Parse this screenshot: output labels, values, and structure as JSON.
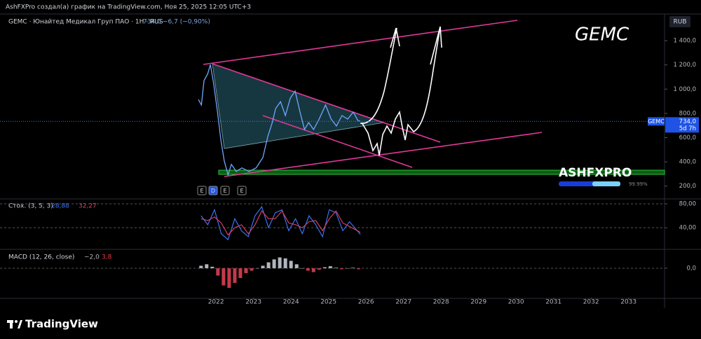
{
  "header": "AshFXPro создал(а) график на TradingView.com, Ноя 25, 2025 12:05 UTC+3",
  "footer": "TradingView",
  "chart_data": [
    {
      "type": "line",
      "title": "GEMC",
      "legend": {
        "symbol": "GEMC · Юнайтед Медикал Груп ПАО · 1Н · RUS",
        "last": "734,0",
        "change": "−6,7 (−0,90%)"
      },
      "currency": "RUB",
      "price_tag": {
        "symbol": "GEMC",
        "price": {
          "value": 734,
          "label": "734,0"
        },
        "countdown": "5d 7h"
      },
      "watermark": "ASHFXPRO",
      "watermark_progress": "99.99%",
      "events": [
        "E",
        "D",
        "E",
        "E"
      ],
      "color": "#6fa8ff",
      "x": [
        2021.53,
        2021.61,
        2021.68,
        2021.78,
        2021.85,
        2021.94,
        2022.04,
        2022.13,
        2022.22,
        2022.32,
        2022.41,
        2022.54,
        2022.69,
        2022.88,
        2023.07,
        2023.25,
        2023.38,
        2023.5,
        2023.59,
        2023.72,
        2023.85,
        2023.98,
        2024.11,
        2024.24,
        2024.36,
        2024.47,
        2024.6,
        2024.75,
        2024.92,
        2025.07,
        2025.21,
        2025.36,
        2025.51,
        2025.66,
        2025.78,
        2025.85
      ],
      "values": [
        915,
        869,
        1070,
        1128,
        1203,
        1041,
        811,
        580,
        408,
        292,
        379,
        321,
        350,
        321,
        350,
        436,
        609,
        724,
        840,
        897,
        782,
        926,
        984,
        811,
        667,
        724,
        667,
        753,
        869,
        753,
        696,
        782,
        753,
        811,
        742,
        734
      ],
      "ylim": [
        100,
        1620
      ],
      "yticks": [
        {
          "value": 200,
          "label": "200,0"
        },
        {
          "value": 400,
          "label": "400,0"
        },
        {
          "value": 600,
          "label": "600,0"
        },
        {
          "value": 800,
          "label": "800,0"
        },
        {
          "value": 1000,
          "label": "1 000,0"
        },
        {
          "value": 1200,
          "label": "1 200,0"
        },
        {
          "value": 1400,
          "label": "1 400,0"
        }
      ],
      "grid": false
    },
    {
      "type": "line",
      "title": "Стох. (3, 5, 3)",
      "x": [
        2021.6,
        2021.78,
        2021.96,
        2022.14,
        2022.32,
        2022.5,
        2022.68,
        2022.86,
        2023.04,
        2023.22,
        2023.4,
        2023.58,
        2023.76,
        2023.94,
        2024.12,
        2024.3,
        2024.48,
        2024.66,
        2024.84,
        2025.02,
        2025.2,
        2025.38,
        2025.56,
        2025.85
      ],
      "series": [
        {
          "color": "#3d7bff",
          "last": "28,88",
          "values": [
            60,
            45,
            70,
            30,
            20,
            55,
            35,
            25,
            60,
            75,
            40,
            65,
            70,
            35,
            55,
            30,
            60,
            45,
            25,
            70,
            65,
            35,
            50,
            28.88
          ]
        },
        {
          "color": "#e0406a",
          "last": "32,27",
          "values": [
            55,
            52,
            58,
            48,
            28,
            40,
            45,
            30,
            45,
            68,
            55,
            55,
            68,
            48,
            45,
            40,
            50,
            52,
            35,
            55,
            68,
            48,
            42,
            32.27
          ]
        }
      ],
      "ylim": [
        5,
        87
      ],
      "yticks": [
        {
          "value": 80,
          "label": "80,00"
        },
        {
          "value": 40,
          "label": "40,00"
        }
      ],
      "grid": true
    },
    {
      "type": "bar",
      "title": "MACD (12, 26, close)",
      "legend_values": [
        "−2,0",
        "3,8"
      ],
      "color": "#b2b5be",
      "x": [
        2021.6,
        2021.75,
        2021.9,
        2022.05,
        2022.2,
        2022.35,
        2022.5,
        2022.65,
        2022.8,
        2022.95,
        2023.1,
        2023.25,
        2023.4,
        2023.55,
        2023.7,
        2023.85,
        2024.0,
        2024.15,
        2024.3,
        2024.45,
        2024.6,
        2024.75,
        2024.9,
        2025.05,
        2025.2,
        2025.35,
        2025.5,
        2025.65,
        2025.8
      ],
      "values": [
        5,
        8,
        3,
        -15,
        -35,
        -40,
        -30,
        -20,
        -10,
        -5,
        0,
        5,
        12,
        18,
        22,
        20,
        15,
        8,
        0,
        -5,
        -8,
        -3,
        2,
        4,
        1,
        -2,
        0,
        1,
        -2
      ],
      "ylim": [
        -60,
        37
      ],
      "yticks": [
        {
          "value": 0,
          "label": "0,0"
        }
      ],
      "grid": true,
      "xlim": [
        2016.24,
        2033.96
      ],
      "xticks": [
        2022,
        2023,
        2024,
        2025,
        2026,
        2027,
        2028,
        2029,
        2030,
        2031,
        2032,
        2033
      ]
    }
  ]
}
